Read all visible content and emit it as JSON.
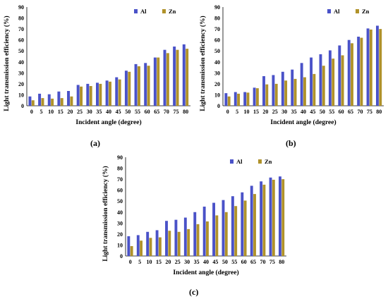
{
  "colors": {
    "al": "#4a52c8",
    "zn": "#b0922a"
  },
  "chart_data": [
    {
      "type": "bar",
      "panel_label": "(a)",
      "categories": [
        "0",
        "5",
        "10",
        "15",
        "20",
        "25",
        "30",
        "35",
        "40",
        "45",
        "50",
        "55",
        "60",
        "65",
        "70",
        "75",
        "80"
      ],
      "xlabel": "Incident angle (degree)",
      "ylabel": "Light transmission efficiency (%)",
      "ylim": [
        0,
        90
      ],
      "yticks": [
        0,
        10,
        20,
        30,
        40,
        50,
        60,
        70,
        80,
        90
      ],
      "legend": "top-right",
      "grid": false,
      "series": [
        {
          "name": "Al",
          "values": [
            8.5,
            11,
            10.5,
            13,
            13.5,
            19,
            20,
            21,
            23,
            26,
            32,
            38,
            39,
            44,
            51,
            54,
            56
          ]
        },
        {
          "name": "Zn",
          "values": [
            5,
            7,
            6.5,
            7,
            8.5,
            17.5,
            18,
            20,
            22,
            24,
            31,
            36,
            36.5,
            44,
            48,
            51,
            52
          ]
        }
      ]
    },
    {
      "type": "bar",
      "panel_label": "(b)",
      "categories": [
        "0",
        "5",
        "10",
        "15",
        "20",
        "25",
        "30",
        "35",
        "40",
        "45",
        "50",
        "55",
        "60",
        "65",
        "70",
        "75",
        "80"
      ],
      "xlabel": "Incident angle (degree)",
      "ylabel": "Light transmission efficiency (%)",
      "ylim": [
        0,
        90
      ],
      "yticks": [
        0,
        10,
        20,
        30,
        40,
        50,
        60,
        70,
        80,
        90
      ],
      "legend": "top-right",
      "grid": false,
      "series": [
        {
          "name": "Al",
          "values": [
            11.5,
            12.5,
            12.5,
            16.5,
            27,
            28,
            31,
            33,
            39,
            44,
            47,
            50.5,
            55,
            60,
            63,
            70.5,
            73
          ]
        },
        {
          "name": "Zn",
          "values": [
            8.5,
            11,
            12,
            16,
            19.5,
            20,
            23,
            24.5,
            26,
            29,
            36.5,
            43,
            46,
            57,
            62,
            69.5,
            70
          ]
        }
      ]
    },
    {
      "type": "bar",
      "panel_label": "(c)",
      "categories": [
        "0",
        "5",
        "10",
        "15",
        "20",
        "25",
        "30",
        "35",
        "40",
        "45",
        "50",
        "55",
        "60",
        "65",
        "70",
        "75",
        "80"
      ],
      "xlabel": "Incident angle (degree)",
      "ylabel": "Light transmission efficiency (%)",
      "ylim": [
        0,
        90
      ],
      "yticks": [
        0,
        10,
        20,
        30,
        40,
        50,
        60,
        70,
        80,
        90
      ],
      "legend": "top-right",
      "grid": false,
      "series": [
        {
          "name": "Al",
          "values": [
            18,
            19,
            22,
            23.5,
            32,
            33,
            35,
            40,
            45,
            48.5,
            51,
            54.5,
            58,
            64,
            68,
            71.5,
            72.5
          ]
        },
        {
          "name": "Zn",
          "values": [
            9,
            14,
            16.5,
            17,
            23,
            22,
            24.5,
            29,
            31.5,
            37,
            40,
            45.5,
            50.5,
            56.5,
            65,
            69.5,
            70
          ]
        }
      ]
    }
  ]
}
